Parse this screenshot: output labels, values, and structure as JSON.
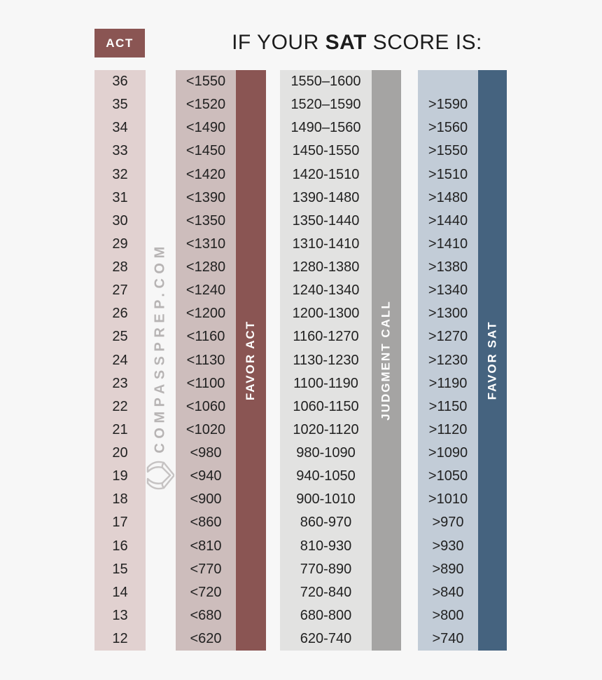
{
  "page": {
    "background": "#f7f7f7"
  },
  "header": {
    "act_badge_label": "ACT",
    "title_prefix": "IF YOUR ",
    "title_emphasis": "SAT",
    "title_suffix": " SCORE IS:"
  },
  "branding": {
    "vertical_text": "COMPASSPREP.COM",
    "logo_icon": "compass-pages-icon"
  },
  "colors": {
    "badge_bg": "#8a5553",
    "act_col_bg": "#e1d1d0",
    "favor_act_bg": "#cdbdbc",
    "favor_act_strip": "#8a5553",
    "judgment_bg": "#e2e2e1",
    "judgment_strip": "#a5a4a3",
    "favor_sat_bg": "#c2ccd7",
    "favor_sat_strip": "#45637f",
    "watermark_gray": "#b7b4b4"
  },
  "strips": {
    "favor_act_label": "FAVOR ACT",
    "judgment_label": "JUDGMENT CALL",
    "favor_sat_label": "FAVOR SAT"
  },
  "chart_data": {
    "type": "table",
    "title": "IF YOUR SAT SCORE IS:",
    "columns": [
      "ACT",
      "FAVOR ACT",
      "JUDGMENT CALL",
      "FAVOR SAT"
    ],
    "rows": [
      {
        "act": "36",
        "favor_act": "<1550",
        "judgment": "1550–1600",
        "favor_sat": ""
      },
      {
        "act": "35",
        "favor_act": "<1520",
        "judgment": "1520–1590",
        "favor_sat": ">1590"
      },
      {
        "act": "34",
        "favor_act": "<1490",
        "judgment": "1490–1560",
        "favor_sat": ">1560"
      },
      {
        "act": "33",
        "favor_act": "<1450",
        "judgment": "1450-1550",
        "favor_sat": ">1550"
      },
      {
        "act": "32",
        "favor_act": "<1420",
        "judgment": "1420-1510",
        "favor_sat": ">1510"
      },
      {
        "act": "31",
        "favor_act": "<1390",
        "judgment": "1390-1480",
        "favor_sat": ">1480"
      },
      {
        "act": "30",
        "favor_act": "<1350",
        "judgment": "1350-1440",
        "favor_sat": ">1440"
      },
      {
        "act": "29",
        "favor_act": "<1310",
        "judgment": "1310-1410",
        "favor_sat": ">1410"
      },
      {
        "act": "28",
        "favor_act": "<1280",
        "judgment": "1280-1380",
        "favor_sat": ">1380"
      },
      {
        "act": "27",
        "favor_act": "<1240",
        "judgment": "1240-1340",
        "favor_sat": ">1340"
      },
      {
        "act": "26",
        "favor_act": "<1200",
        "judgment": "1200-1300",
        "favor_sat": ">1300"
      },
      {
        "act": "25",
        "favor_act": "<1160",
        "judgment": "1160-1270",
        "favor_sat": ">1270"
      },
      {
        "act": "24",
        "favor_act": "<1130",
        "judgment": "1130-1230",
        "favor_sat": ">1230"
      },
      {
        "act": "23",
        "favor_act": "<1100",
        "judgment": "1100-1190",
        "favor_sat": ">1190"
      },
      {
        "act": "22",
        "favor_act": "<1060",
        "judgment": "1060-1150",
        "favor_sat": ">1150"
      },
      {
        "act": "21",
        "favor_act": "<1020",
        "judgment": "1020-1120",
        "favor_sat": ">1120"
      },
      {
        "act": "20",
        "favor_act": "<980",
        "judgment": "980-1090",
        "favor_sat": ">1090"
      },
      {
        "act": "19",
        "favor_act": "<940",
        "judgment": "940-1050",
        "favor_sat": ">1050"
      },
      {
        "act": "18",
        "favor_act": "<900",
        "judgment": "900-1010",
        "favor_sat": ">1010"
      },
      {
        "act": "17",
        "favor_act": "<860",
        "judgment": "860-970",
        "favor_sat": ">970"
      },
      {
        "act": "16",
        "favor_act": "<810",
        "judgment": "810-930",
        "favor_sat": ">930"
      },
      {
        "act": "15",
        "favor_act": "<770",
        "judgment": "770-890",
        "favor_sat": ">890"
      },
      {
        "act": "14",
        "favor_act": "<720",
        "judgment": "720-840",
        "favor_sat": ">840"
      },
      {
        "act": "13",
        "favor_act": "<680",
        "judgment": "680-800",
        "favor_sat": ">800"
      },
      {
        "act": "12",
        "favor_act": "<620",
        "judgment": "620-740",
        "favor_sat": ">740"
      }
    ]
  }
}
